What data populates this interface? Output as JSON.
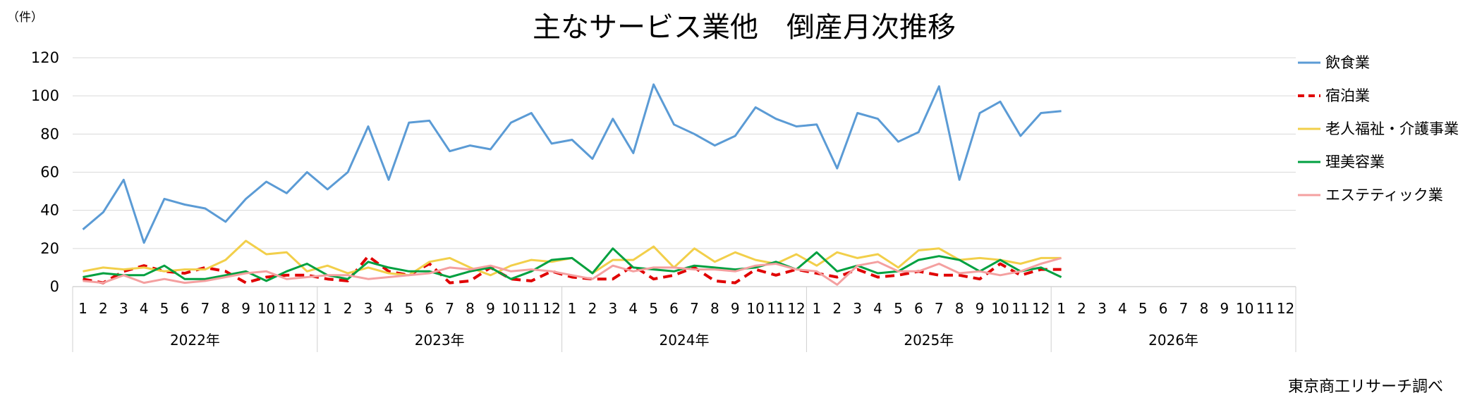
{
  "chart_data": {
    "type": "line",
    "title": "主なサービス業他　倒産月次推移",
    "unit_label": "（件）",
    "source": "東京商工リサーチ調べ",
    "ylim": [
      0,
      120
    ],
    "yticks": [
      "0",
      "20",
      "40",
      "60",
      "80",
      "100",
      "120"
    ],
    "grid": true,
    "legend_position": "right",
    "months": [
      "1",
      "2",
      "3",
      "4",
      "5",
      "6",
      "7",
      "8",
      "9",
      "10",
      "11",
      "12"
    ],
    "years": [
      "2022年",
      "2023年",
      "2024年",
      "2025年",
      "2026年"
    ],
    "series": [
      {
        "name": "飲食業",
        "color": "#5B9BD5",
        "dash": false,
        "values": [
          30,
          39,
          56,
          23,
          46,
          43,
          41,
          34,
          46,
          55,
          49,
          60,
          51,
          60,
          84,
          56,
          86,
          87,
          71,
          74,
          72,
          86,
          91,
          75,
          77,
          67,
          88,
          70,
          106,
          85,
          80,
          74,
          79,
          94,
          88,
          84,
          85,
          62,
          91,
          88,
          76,
          81,
          105,
          56,
          91,
          97,
          79,
          91,
          92
        ]
      },
      {
        "name": "宿泊業",
        "color": "#E00000",
        "dash": true,
        "values": [
          4,
          2,
          8,
          11,
          8,
          7,
          10,
          8,
          2,
          5,
          6,
          6,
          4,
          3,
          16,
          8,
          6,
          12,
          2,
          3,
          10,
          4,
          3,
          8,
          5,
          4,
          4,
          11,
          4,
          6,
          10,
          3,
          2,
          9,
          6,
          9,
          7,
          5,
          9,
          5,
          6,
          8,
          6,
          6,
          4,
          12,
          6,
          9,
          9
        ]
      },
      {
        "name": "老人福祉・介護事業",
        "color": "#F2CF4A",
        "dash": false,
        "values": [
          8,
          10,
          9,
          10,
          8,
          9,
          9,
          14,
          24,
          17,
          18,
          8,
          11,
          7,
          10,
          7,
          6,
          13,
          15,
          10,
          6,
          11,
          14,
          13,
          15,
          7,
          14,
          14,
          21,
          10,
          20,
          13,
          18,
          14,
          12,
          17,
          11,
          18,
          15,
          17,
          10,
          19,
          20,
          14,
          15,
          14,
          12,
          15,
          15
        ]
      },
      {
        "name": "理美容業",
        "color": "#00A040",
        "dash": false,
        "values": [
          5,
          7,
          6,
          6,
          11,
          4,
          4,
          6,
          8,
          3,
          8,
          12,
          6,
          4,
          13,
          10,
          8,
          8,
          5,
          8,
          10,
          4,
          8,
          14,
          15,
          7,
          20,
          10,
          9,
          8,
          11,
          10,
          9,
          10,
          13,
          9,
          18,
          8,
          11,
          7,
          8,
          14,
          16,
          14,
          8,
          14,
          8,
          10,
          5
        ]
      },
      {
        "name": "エステティック業",
        "color": "#F4A0A0",
        "dash": false,
        "values": [
          3,
          2,
          6,
          2,
          4,
          2,
          3,
          5,
          7,
          8,
          4,
          5,
          6,
          6,
          4,
          5,
          6,
          7,
          10,
          9,
          11,
          8,
          9,
          8,
          6,
          4,
          11,
          8,
          10,
          10,
          9,
          9,
          8,
          11,
          12,
          9,
          8,
          1,
          11,
          13,
          8,
          8,
          12,
          7,
          8,
          6,
          8,
          12,
          15
        ]
      }
    ]
  }
}
